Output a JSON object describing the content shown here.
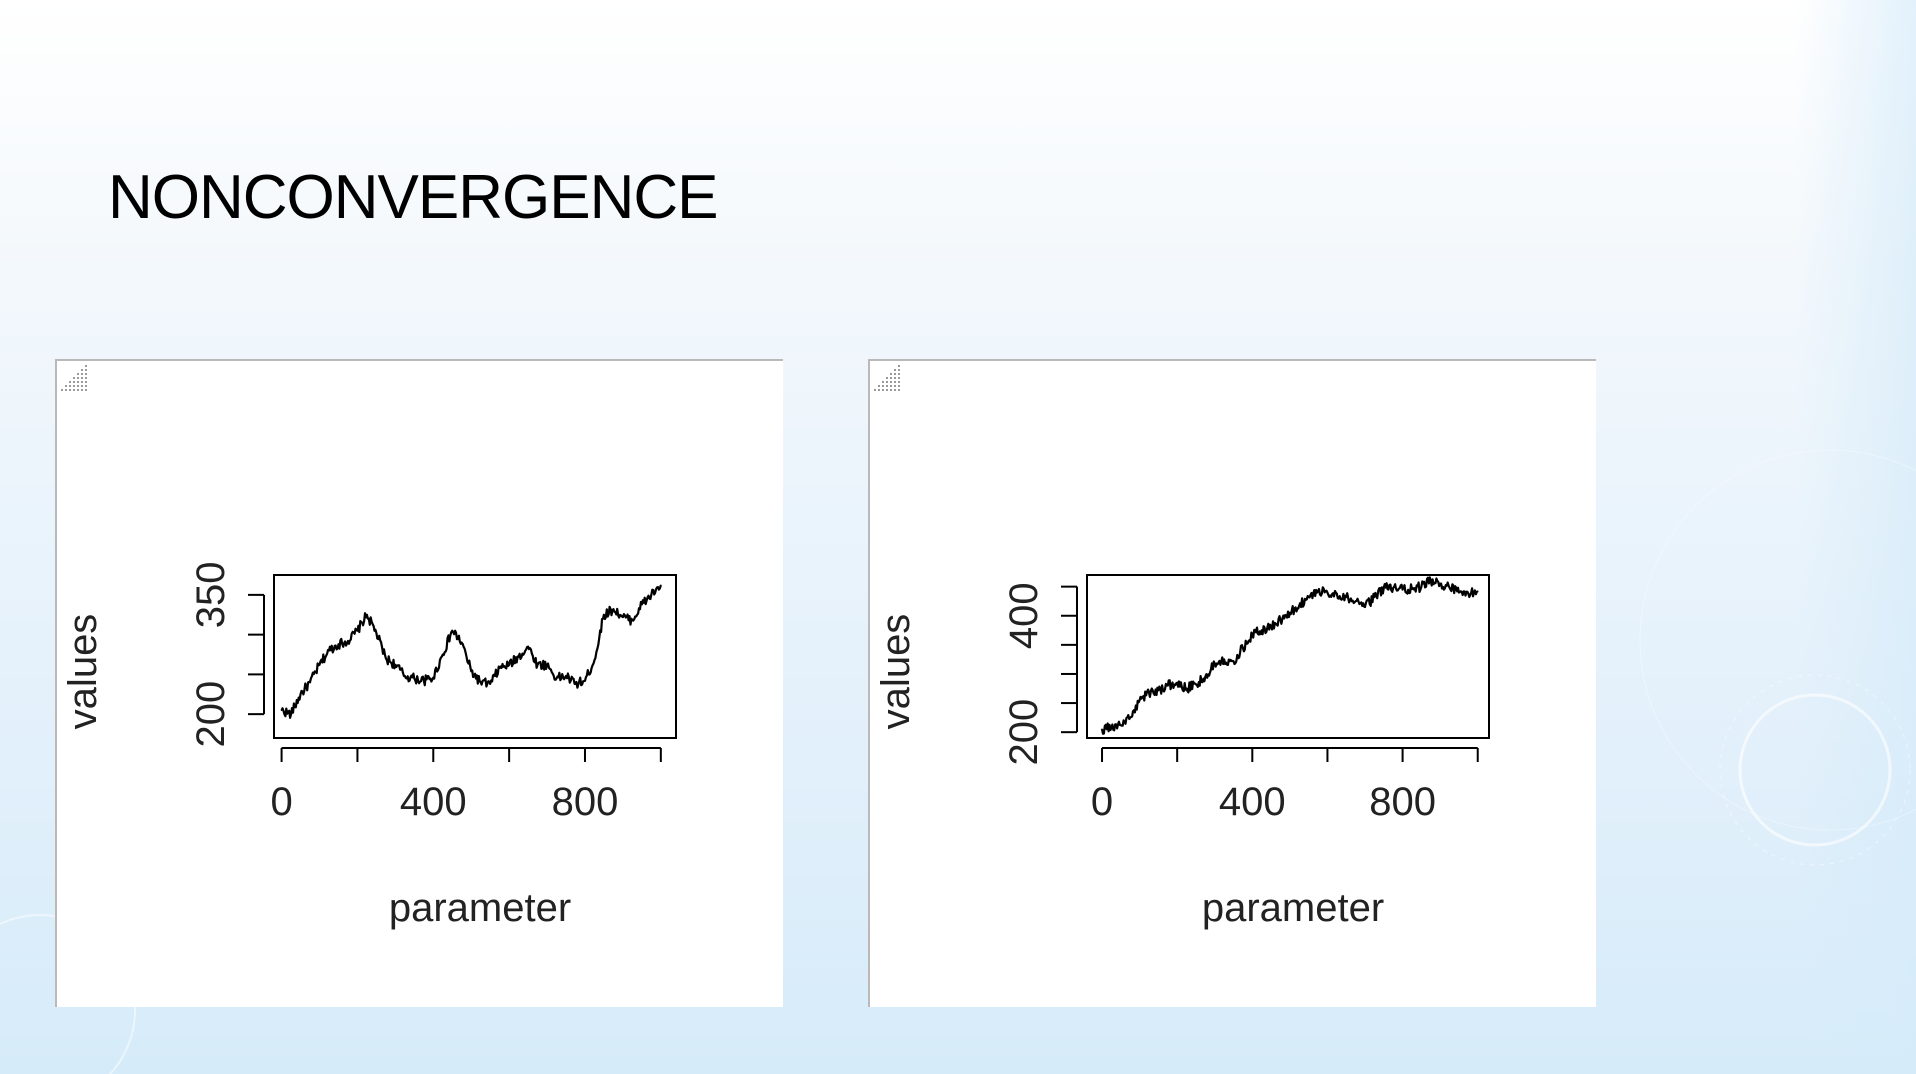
{
  "slide": {
    "title": "NONCONVERGENCE"
  },
  "chart_data": [
    {
      "type": "line",
      "xlabel": "parameter",
      "ylabel": "values",
      "xlim": [
        -20,
        1040
      ],
      "ylim": [
        170,
        375
      ],
      "xticks": [
        "0",
        "400",
        "800"
      ],
      "xtick_values": [
        0,
        200,
        400,
        600,
        800,
        1000
      ],
      "yticks": [
        "200",
        "350"
      ],
      "ytick_values": [
        200,
        250,
        300,
        350
      ],
      "grid": false,
      "x": [
        0,
        25,
        50,
        75,
        100,
        125,
        150,
        175,
        200,
        225,
        250,
        275,
        300,
        325,
        350,
        375,
        400,
        425,
        450,
        475,
        500,
        525,
        550,
        575,
        600,
        625,
        650,
        675,
        700,
        725,
        750,
        775,
        800,
        825,
        850,
        875,
        900,
        925,
        950,
        975,
        1000
      ],
      "values": [
        205,
        200,
        225,
        240,
        262,
        280,
        288,
        292,
        305,
        325,
        302,
        270,
        262,
        248,
        245,
        242,
        246,
        275,
        305,
        290,
        254,
        240,
        238,
        258,
        262,
        272,
        285,
        262,
        262,
        245,
        248,
        238,
        242,
        268,
        325,
        332,
        322,
        318,
        338,
        350,
        362
      ]
    },
    {
      "type": "line",
      "xlabel": "parameter",
      "ylabel": "values",
      "xlim": [
        -40,
        1030
      ],
      "ylim": [
        190,
        470
      ],
      "xticks": [
        "0",
        "400",
        "800"
      ],
      "xtick_values": [
        0,
        200,
        400,
        600,
        800,
        1000
      ],
      "yticks": [
        "200",
        "400"
      ],
      "ytick_values": [
        200,
        250,
        300,
        350,
        400,
        450
      ],
      "grid": false,
      "x": [
        0,
        25,
        50,
        75,
        100,
        125,
        150,
        175,
        200,
        225,
        250,
        275,
        300,
        325,
        350,
        375,
        400,
        425,
        450,
        475,
        500,
        525,
        550,
        575,
        600,
        625,
        650,
        675,
        700,
        725,
        750,
        775,
        800,
        825,
        850,
        875,
        900,
        925,
        950,
        975,
        1000
      ],
      "values": [
        205,
        208,
        212,
        225,
        255,
        268,
        272,
        280,
        285,
        275,
        282,
        295,
        318,
        325,
        322,
        345,
        368,
        375,
        382,
        392,
        405,
        418,
        432,
        442,
        440,
        438,
        432,
        425,
        415,
        432,
        448,
        448,
        445,
        446,
        450,
        460,
        455,
        448,
        440,
        438,
        442
      ]
    }
  ]
}
